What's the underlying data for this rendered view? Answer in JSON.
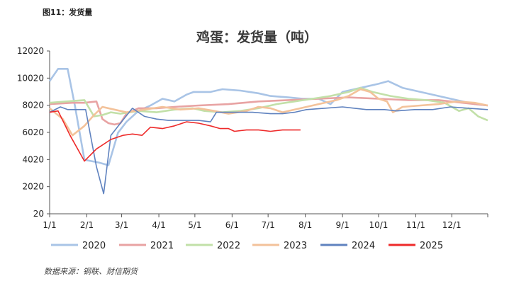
{
  "figure_label": "图11：发货量",
  "source": "数据来源：钢联、财信期货",
  "chart_data": {
    "type": "line",
    "title": "鸡蛋：发货量（吨）",
    "xlabel": "",
    "ylabel": "",
    "x_tick_labels": [
      "1/1",
      "2/1",
      "3/1",
      "4/1",
      "5/1",
      "6/1",
      "7/1",
      "8/1",
      "9/1",
      "10/1",
      "11/1",
      "12/1"
    ],
    "y_tick_labels": [
      "20",
      "2020",
      "4020",
      "6020",
      "8020",
      "10020",
      "12020"
    ],
    "y_ticks": [
      20,
      2020,
      4020,
      6020,
      8020,
      10020,
      12020
    ],
    "ylim": [
      20,
      12020
    ],
    "xlim_day_of_year": [
      1,
      366
    ],
    "grid": false,
    "legend": "bottom",
    "series": [
      {
        "name": "2020",
        "color": "#a9c4e6",
        "points": [
          [
            1,
            9800
          ],
          [
            8,
            10700
          ],
          [
            16,
            10700
          ],
          [
            22,
            8000
          ],
          [
            30,
            4000
          ],
          [
            42,
            3800
          ],
          [
            50,
            3600
          ],
          [
            58,
            6000
          ],
          [
            65,
            6800
          ],
          [
            75,
            7600
          ],
          [
            85,
            8000
          ],
          [
            95,
            8500
          ],
          [
            105,
            8300
          ],
          [
            115,
            8800
          ],
          [
            121,
            9000
          ],
          [
            135,
            9000
          ],
          [
            145,
            9200
          ],
          [
            160,
            9100
          ],
          [
            175,
            8900
          ],
          [
            185,
            8700
          ],
          [
            200,
            8600
          ],
          [
            212,
            8500
          ],
          [
            225,
            8500
          ],
          [
            235,
            8100
          ],
          [
            245,
            9000
          ],
          [
            255,
            9200
          ],
          [
            265,
            9400
          ],
          [
            275,
            9600
          ],
          [
            283,
            9800
          ],
          [
            295,
            9300
          ],
          [
            310,
            9000
          ],
          [
            325,
            8700
          ],
          [
            340,
            8400
          ],
          [
            355,
            8100
          ],
          [
            366,
            8000
          ]
        ]
      },
      {
        "name": "2021",
        "color": "#e8a3a3",
        "points": [
          [
            1,
            8100
          ],
          [
            20,
            8200
          ],
          [
            30,
            8200
          ],
          [
            40,
            8300
          ],
          [
            45,
            7000
          ],
          [
            50,
            6700
          ],
          [
            55,
            6600
          ],
          [
            60,
            6700
          ],
          [
            65,
            7400
          ],
          [
            75,
            7800
          ],
          [
            90,
            7800
          ],
          [
            105,
            7900
          ],
          [
            125,
            8000
          ],
          [
            150,
            8100
          ],
          [
            175,
            8300
          ],
          [
            200,
            8400
          ],
          [
            225,
            8500
          ],
          [
            250,
            8600
          ],
          [
            275,
            8500
          ],
          [
            300,
            8400
          ],
          [
            325,
            8400
          ],
          [
            345,
            8200
          ],
          [
            366,
            8000
          ]
        ]
      },
      {
        "name": "2022",
        "color": "#c2e0a8",
        "points": [
          [
            1,
            8200
          ],
          [
            15,
            8300
          ],
          [
            30,
            8400
          ],
          [
            38,
            7200
          ],
          [
            45,
            7300
          ],
          [
            52,
            7500
          ],
          [
            60,
            7400
          ],
          [
            75,
            7600
          ],
          [
            90,
            7500
          ],
          [
            105,
            7700
          ],
          [
            120,
            7800
          ],
          [
            130,
            7600
          ],
          [
            145,
            7500
          ],
          [
            160,
            7600
          ],
          [
            175,
            7800
          ],
          [
            190,
            8100
          ],
          [
            205,
            8300
          ],
          [
            220,
            8500
          ],
          [
            235,
            8700
          ],
          [
            250,
            9000
          ],
          [
            260,
            9300
          ],
          [
            270,
            9000
          ],
          [
            285,
            8700
          ],
          [
            300,
            8500
          ],
          [
            315,
            8400
          ],
          [
            330,
            8200
          ],
          [
            342,
            7600
          ],
          [
            350,
            7800
          ],
          [
            358,
            7200
          ],
          [
            366,
            6900
          ]
        ]
      },
      {
        "name": "2023",
        "color": "#f3c29a",
        "points": [
          [
            1,
            7800
          ],
          [
            12,
            7000
          ],
          [
            20,
            5800
          ],
          [
            30,
            6500
          ],
          [
            38,
            7300
          ],
          [
            45,
            7900
          ],
          [
            55,
            7700
          ],
          [
            65,
            7500
          ],
          [
            80,
            7700
          ],
          [
            95,
            7900
          ],
          [
            110,
            7700
          ],
          [
            125,
            7800
          ],
          [
            138,
            7600
          ],
          [
            150,
            7400
          ],
          [
            165,
            7600
          ],
          [
            175,
            7900
          ],
          [
            185,
            7800
          ],
          [
            195,
            7500
          ],
          [
            210,
            7800
          ],
          [
            225,
            8100
          ],
          [
            240,
            8400
          ],
          [
            250,
            8700
          ],
          [
            260,
            9200
          ],
          [
            268,
            9000
          ],
          [
            275,
            8500
          ],
          [
            282,
            8300
          ],
          [
            287,
            7500
          ],
          [
            295,
            7900
          ],
          [
            310,
            8000
          ],
          [
            325,
            8100
          ],
          [
            340,
            8300
          ],
          [
            355,
            8200
          ],
          [
            366,
            8000
          ]
        ]
      },
      {
        "name": "2024",
        "color": "#5f82bf",
        "points": [
          [
            1,
            7500
          ],
          [
            10,
            7900
          ],
          [
            16,
            7700
          ],
          [
            31,
            7700
          ],
          [
            40,
            3500
          ],
          [
            46,
            1500
          ],
          [
            52,
            5800
          ],
          [
            60,
            6700
          ],
          [
            70,
            7800
          ],
          [
            80,
            7200
          ],
          [
            90,
            7000
          ],
          [
            100,
            6900
          ],
          [
            115,
            6900
          ],
          [
            125,
            6900
          ],
          [
            135,
            6800
          ],
          [
            140,
            7500
          ],
          [
            155,
            7500
          ],
          [
            170,
            7500
          ],
          [
            185,
            7400
          ],
          [
            195,
            7400
          ],
          [
            205,
            7500
          ],
          [
            215,
            7700
          ],
          [
            230,
            7800
          ],
          [
            245,
            7900
          ],
          [
            255,
            7800
          ],
          [
            265,
            7700
          ],
          [
            280,
            7700
          ],
          [
            290,
            7600
          ],
          [
            305,
            7700
          ],
          [
            320,
            7700
          ],
          [
            335,
            7900
          ],
          [
            350,
            7800
          ],
          [
            366,
            7700
          ]
        ]
      },
      {
        "name": "2025",
        "color": "#ee2a2a",
        "points": [
          [
            1,
            7500
          ],
          [
            8,
            7600
          ],
          [
            18,
            5800
          ],
          [
            30,
            3900
          ],
          [
            40,
            4800
          ],
          [
            52,
            5500
          ],
          [
            62,
            5800
          ],
          [
            70,
            5900
          ],
          [
            78,
            5800
          ],
          [
            85,
            6400
          ],
          [
            95,
            6300
          ],
          [
            105,
            6500
          ],
          [
            115,
            6800
          ],
          [
            125,
            6700
          ],
          [
            135,
            6500
          ],
          [
            143,
            6300
          ],
          [
            150,
            6300
          ],
          [
            155,
            6100
          ],
          [
            165,
            6200
          ],
          [
            175,
            6200
          ],
          [
            185,
            6100
          ],
          [
            195,
            6200
          ],
          [
            210,
            6200
          ]
        ]
      }
    ]
  }
}
